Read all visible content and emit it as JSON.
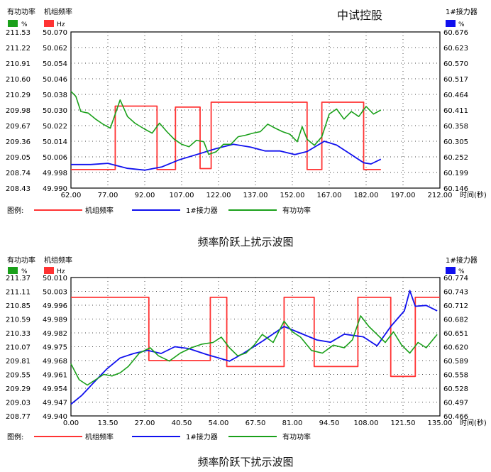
{
  "watermark": "中试控股",
  "charts": [
    {
      "caption": "频率阶跃上扰示波图"
    },
    {
      "caption": "频率阶跃下扰示波图"
    }
  ],
  "chart_data": [
    {
      "type": "line",
      "headers": {
        "left1": "有功功率",
        "left1_unit": "%",
        "left1_color": "#1aa01a",
        "left2": "机组频率",
        "left2_unit": "Hz",
        "left2_color": "#ff3333",
        "right": "1#接力器",
        "right_unit": "%",
        "right_color": "#1010ee"
      },
      "x": {
        "min": 62,
        "max": 212,
        "step": 15,
        "label": "时间(秒)",
        "ticks": [
          "62.00",
          "77.00",
          "92.00",
          "107.00",
          "122.00",
          "137.00",
          "152.00",
          "167.00",
          "182.00",
          "197.00",
          "212.00"
        ]
      },
      "y_power": {
        "min": 208.43,
        "max": 211.53,
        "ticks": [
          "211.53",
          "211.22",
          "210.91",
          "210.60",
          "210.29",
          "209.98",
          "209.67",
          "209.36",
          "209.05",
          "208.74",
          "208.43"
        ]
      },
      "y_freq": {
        "min": 49.99,
        "max": 50.07,
        "ticks": [
          "50.070",
          "50.062",
          "50.054",
          "50.046",
          "50.038",
          "50.030",
          "50.022",
          "50.014",
          "50.006",
          "49.998",
          "49.990"
        ]
      },
      "y_servo": {
        "min": 60.146,
        "max": 60.676,
        "ticks": [
          "60.676",
          "60.623",
          "60.570",
          "60.517",
          "60.464",
          "60.411",
          "60.358",
          "60.305",
          "60.252",
          "60.199",
          "60.146"
        ]
      },
      "legend": {
        "title": "图例:",
        "items": [
          {
            "name": "机组频率",
            "color": "#ff3333"
          },
          {
            "name": "1#接力器",
            "color": "#1010ee"
          },
          {
            "name": "有功功率",
            "color": "#1aa01a"
          }
        ]
      },
      "series": [
        {
          "name": "机组频率",
          "axis": "freq",
          "color": "#ff3333",
          "points": [
            [
              62,
              49.9995
            ],
            [
              80,
              49.9995
            ],
            [
              80,
              50.032
            ],
            [
              97,
              50.032
            ],
            [
              97,
              49.9995
            ],
            [
              104.5,
              49.9995
            ],
            [
              104.5,
              50.0315
            ],
            [
              114.5,
              50.0315
            ],
            [
              114.5,
              50.0
            ],
            [
              119,
              50.0
            ],
            [
              119,
              50.034
            ],
            [
              158,
              50.034
            ],
            [
              158,
              49.9995
            ],
            [
              164,
              49.9995
            ],
            [
              164,
              50.034
            ],
            [
              181,
              50.034
            ],
            [
              181,
              49.9995
            ],
            [
              188,
              49.9995
            ]
          ]
        },
        {
          "name": "1#接力器",
          "axis": "servo",
          "color": "#1010ee",
          "points": [
            [
              62,
              60.226
            ],
            [
              70,
              60.226
            ],
            [
              77,
              60.23
            ],
            [
              85,
              60.213
            ],
            [
              92,
              60.207
            ],
            [
              99,
              60.218
            ],
            [
              106,
              60.242
            ],
            [
              114,
              60.262
            ],
            [
              121,
              60.28
            ],
            [
              128,
              60.295
            ],
            [
              135,
              60.285
            ],
            [
              141,
              60.272
            ],
            [
              147,
              60.272
            ],
            [
              153,
              60.26
            ],
            [
              158,
              60.27
            ],
            [
              165,
              60.305
            ],
            [
              170,
              60.292
            ],
            [
              175,
              60.265
            ],
            [
              181,
              60.232
            ],
            [
              184,
              60.228
            ],
            [
              188,
              60.244
            ]
          ]
        },
        {
          "name": "有功功率",
          "axis": "power",
          "color": "#1aa01a",
          "points": [
            [
              62,
              210.35
            ],
            [
              64,
              210.25
            ],
            [
              66,
              209.95
            ],
            [
              69,
              209.92
            ],
            [
              72,
              209.8
            ],
            [
              75,
              209.7
            ],
            [
              78,
              209.62
            ],
            [
              80,
              209.9
            ],
            [
              82,
              210.18
            ],
            [
              85,
              209.85
            ],
            [
              88,
              209.72
            ],
            [
              92,
              209.6
            ],
            [
              95,
              209.52
            ],
            [
              98,
              209.72
            ],
            [
              101,
              209.55
            ],
            [
              104,
              209.4
            ],
            [
              107,
              209.3
            ],
            [
              110,
              209.25
            ],
            [
              113,
              209.38
            ],
            [
              116,
              209.35
            ],
            [
              118,
              209.1
            ],
            [
              121,
              209.15
            ],
            [
              124,
              209.3
            ],
            [
              127,
              209.3
            ],
            [
              130,
              209.45
            ],
            [
              133,
              209.48
            ],
            [
              136,
              209.52
            ],
            [
              139,
              209.55
            ],
            [
              142,
              209.7
            ],
            [
              145,
              209.62
            ],
            [
              148,
              209.55
            ],
            [
              151,
              209.5
            ],
            [
              154,
              209.35
            ],
            [
              156,
              209.65
            ],
            [
              158,
              209.4
            ],
            [
              161,
              209.28
            ],
            [
              164,
              209.45
            ],
            [
              167,
              209.9
            ],
            [
              170,
              210.0
            ],
            [
              173,
              209.8
            ],
            [
              176,
              209.95
            ],
            [
              179,
              209.85
            ],
            [
              182,
              210.05
            ],
            [
              185,
              209.9
            ],
            [
              188,
              209.98
            ]
          ]
        }
      ]
    },
    {
      "type": "line",
      "headers": {
        "left1": "有功功率",
        "left1_unit": "%",
        "left1_color": "#1aa01a",
        "left2": "机组频率",
        "left2_unit": "Hz",
        "left2_color": "#ff3333",
        "right": "1#接力器",
        "right_unit": "%",
        "right_color": "#1010ee"
      },
      "x": {
        "min": 0,
        "max": 135,
        "step": 13.5,
        "label": "时间(秒)",
        "ticks": [
          "0.00",
          "13.50",
          "27.00",
          "40.50",
          "54.00",
          "67.50",
          "81.00",
          "94.50",
          "108.00",
          "121.50",
          "135.00"
        ]
      },
      "y_power": {
        "min": 208.77,
        "max": 211.37,
        "ticks": [
          "211.37",
          "211.11",
          "210.85",
          "210.59",
          "210.33",
          "210.07",
          "209.81",
          "209.55",
          "209.29",
          "209.03",
          "208.77"
        ]
      },
      "y_freq": {
        "min": 49.94,
        "max": 50.01,
        "ticks": [
          "50.010",
          "50.003",
          "49.996",
          "49.989",
          "49.982",
          "49.975",
          "49.968",
          "49.961",
          "49.954",
          "49.947",
          "49.940"
        ]
      },
      "y_servo": {
        "min": 60.466,
        "max": 60.774,
        "ticks": [
          "60.774",
          "60.743",
          "60.712",
          "60.682",
          "60.651",
          "60.620",
          "60.589",
          "60.558",
          "60.528",
          "60.497",
          "60.466"
        ]
      },
      "legend": {
        "title": "图例:",
        "items": [
          {
            "name": "机组频率",
            "color": "#ff3333"
          },
          {
            "name": "1#接力器",
            "color": "#1010ee"
          },
          {
            "name": "有功功率",
            "color": "#1aa01a"
          }
        ]
      },
      "series": [
        {
          "name": "机组频率",
          "axis": "freq",
          "color": "#ff3333",
          "points": [
            [
              0,
              50.0
            ],
            [
              28.5,
              50.0
            ],
            [
              28.5,
              49.968
            ],
            [
              51,
              49.968
            ],
            [
              51,
              50.0
            ],
            [
              57,
              50.0
            ],
            [
              57,
              49.965
            ],
            [
              78,
              49.965
            ],
            [
              78,
              50.0
            ],
            [
              89,
              50.0
            ],
            [
              89,
              49.965
            ],
            [
              105,
              49.965
            ],
            [
              105,
              50.0
            ],
            [
              117,
              50.0
            ],
            [
              117,
              49.96
            ],
            [
              126,
              49.96
            ],
            [
              126,
              50.0
            ],
            [
              135,
              50.0
            ]
          ]
        },
        {
          "name": "1#接力器",
          "axis": "servo",
          "color": "#1010ee",
          "points": [
            [
              0,
              60.492
            ],
            [
              4,
              60.512
            ],
            [
              8,
              60.538
            ],
            [
              13,
              60.57
            ],
            [
              18,
              60.595
            ],
            [
              23,
              60.605
            ],
            [
              28,
              60.612
            ],
            [
              33,
              60.605
            ],
            [
              38,
              60.62
            ],
            [
              43,
              60.616
            ],
            [
              50,
              60.602
            ],
            [
              54,
              60.595
            ],
            [
              58,
              60.588
            ],
            [
              63,
              60.605
            ],
            [
              70,
              60.632
            ],
            [
              78,
              60.665
            ],
            [
              84,
              60.65
            ],
            [
              90,
              60.635
            ],
            [
              95,
              60.63
            ],
            [
              100,
              60.648
            ],
            [
              107,
              60.642
            ],
            [
              112,
              60.622
            ],
            [
              117,
              60.665
            ],
            [
              122,
              60.7
            ],
            [
              124,
              60.745
            ],
            [
              126,
              60.71
            ],
            [
              130,
              60.712
            ],
            [
              134,
              60.7
            ]
          ]
        },
        {
          "name": "有功功率",
          "axis": "power",
          "color": "#1aa01a",
          "points": [
            [
              0,
              209.75
            ],
            [
              3,
              209.45
            ],
            [
              6,
              209.35
            ],
            [
              9,
              209.45
            ],
            [
              12,
              209.55
            ],
            [
              15,
              209.52
            ],
            [
              18,
              209.58
            ],
            [
              21,
              209.7
            ],
            [
              25,
              209.95
            ],
            [
              29,
              210.05
            ],
            [
              32,
              209.9
            ],
            [
              36,
              209.8
            ],
            [
              40,
              209.95
            ],
            [
              44,
              210.05
            ],
            [
              48,
              210.12
            ],
            [
              52,
              210.15
            ],
            [
              55,
              210.25
            ],
            [
              58,
              210.05
            ],
            [
              61,
              209.9
            ],
            [
              64,
              209.95
            ],
            [
              67,
              210.1
            ],
            [
              70,
              210.3
            ],
            [
              74,
              210.15
            ],
            [
              78,
              210.55
            ],
            [
              81,
              210.35
            ],
            [
              84,
              210.25
            ],
            [
              88,
              210.0
            ],
            [
              92,
              209.95
            ],
            [
              96,
              210.1
            ],
            [
              100,
              210.05
            ],
            [
              103,
              210.2
            ],
            [
              106,
              210.65
            ],
            [
              109,
              210.45
            ],
            [
              112,
              210.3
            ],
            [
              115,
              210.15
            ],
            [
              118,
              210.35
            ],
            [
              121,
              210.1
            ],
            [
              124,
              209.95
            ],
            [
              127,
              210.15
            ],
            [
              130,
              210.05
            ],
            [
              134,
              210.3
            ]
          ]
        }
      ]
    }
  ]
}
